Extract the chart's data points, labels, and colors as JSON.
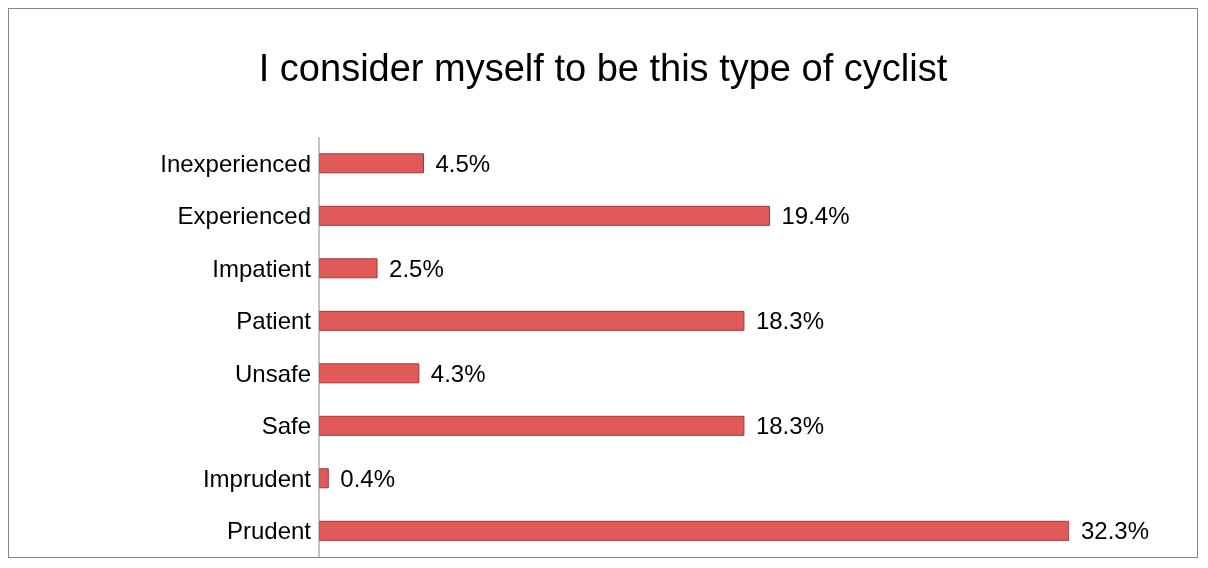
{
  "chart_data": {
    "type": "bar",
    "orientation": "horizontal",
    "title": "I consider myself to be this type of cyclist",
    "categories": [
      "Inexperienced",
      "Experienced",
      "Impatient",
      "Patient",
      "Unsafe",
      "Safe",
      "Imprudent",
      "Prudent"
    ],
    "values": [
      4.5,
      19.4,
      2.5,
      18.3,
      4.3,
      18.3,
      0.4,
      32.3
    ],
    "value_labels": [
      "4.5%",
      "19.4%",
      "2.5%",
      "18.3%",
      "4.3%",
      "18.3%",
      "0.4%",
      "32.3%"
    ],
    "color": "#e05a5a"
  }
}
